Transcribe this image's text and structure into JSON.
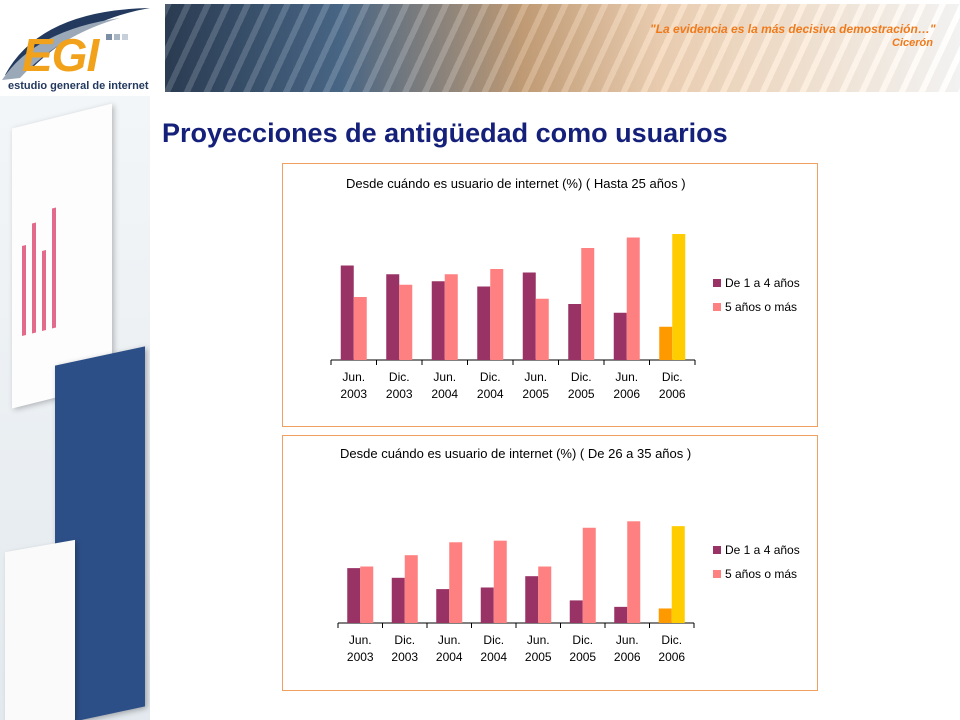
{
  "header": {
    "logo_text": "EGI",
    "logo_subtitle": "estudio general de internet",
    "quote": "\"La evidencia es la más decisiva demostración…\"",
    "quote_author": "Cicerón"
  },
  "page_title": "Proyecciones de antigüedad como usuarios",
  "colors": {
    "series1": "#993366",
    "series2": "#ff8080",
    "highlight1": "#ff9900",
    "highlight2": "#ffcc00",
    "border": "#f0a060",
    "title": "#14207a"
  },
  "chart_data": [
    {
      "type": "bar",
      "title": "Desde cuándo es usuario de internet (%) ( Hasta 25 años )",
      "categories": [
        [
          "Jun.",
          "2003"
        ],
        [
          "Dic.",
          "2003"
        ],
        [
          "Jun.",
          "2004"
        ],
        [
          "Dic.",
          "2004"
        ],
        [
          "Jun.",
          "2005"
        ],
        [
          "Dic.",
          "2005"
        ],
        [
          "Jun.",
          "2006"
        ],
        [
          "Dic.",
          "2006"
        ]
      ],
      "series": [
        {
          "name": "De 1 a 4 años",
          "values": [
            54,
            49,
            45,
            42,
            50,
            32,
            27,
            19
          ]
        },
        {
          "name": "5 años o más",
          "values": [
            36,
            43,
            49,
            52,
            35,
            64,
            70,
            72
          ]
        }
      ],
      "ylim": [
        0,
        80
      ],
      "legend": "right",
      "highlight_last_category": true
    },
    {
      "type": "bar",
      "title": "Desde cuándo es usuario de internet (%) ( De 26 a 35 años )",
      "categories": [
        [
          "Jun.",
          "2003"
        ],
        [
          "Dic.",
          "2003"
        ],
        [
          "Jun.",
          "2004"
        ],
        [
          "Dic.",
          "2004"
        ],
        [
          "Jun.",
          "2005"
        ],
        [
          "Dic.",
          "2005"
        ],
        [
          "Jun.",
          "2006"
        ],
        [
          "Dic.",
          "2006"
        ]
      ],
      "series": [
        {
          "name": "De 1 a 4 años",
          "values": [
            34,
            28,
            21,
            22,
            29,
            14,
            10,
            9
          ]
        },
        {
          "name": "5 años o más",
          "values": [
            35,
            42,
            50,
            51,
            35,
            59,
            63,
            60
          ]
        }
      ],
      "ylim": [
        0,
        70
      ],
      "legend": "right",
      "highlight_last_category": true
    }
  ]
}
